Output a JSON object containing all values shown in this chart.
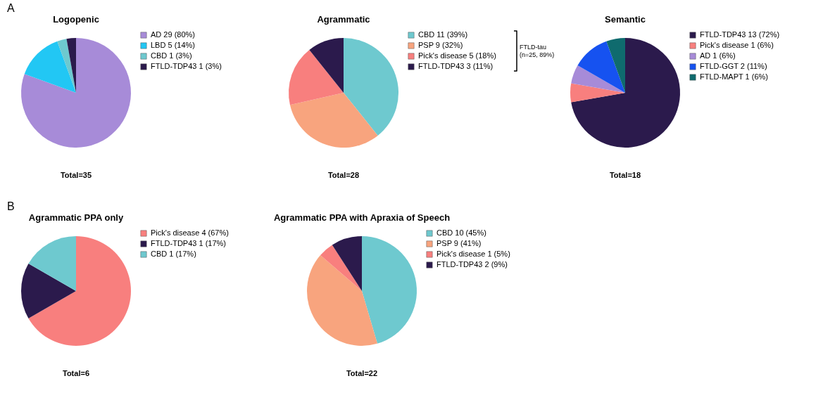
{
  "chart_data": [
    {
      "type": "pie",
      "title": "Logopenic",
      "categories": [
        "AD 29 (80%)",
        "LBD 5 (14%)",
        "CBD 1 (3%)",
        "FTLD-TDP43 1 (3%)"
      ],
      "values": [
        29,
        5,
        1,
        1
      ],
      "colors": [
        "#a78bd8",
        "#22c7f4",
        "#6ec9cf",
        "#2b1a4c"
      ],
      "legend": "right",
      "annotations": [
        "A",
        "Total=35"
      ]
    },
    {
      "type": "pie",
      "title": "Agrammatic",
      "categories": [
        "CBD 11 (39%)",
        "PSP 9 (32%)",
        "Pick's disease 5 (18%)",
        "FTLD-TDP43 3 (11%)"
      ],
      "values": [
        11,
        9,
        5,
        3
      ],
      "colors": [
        "#6ec9cf",
        "#f8a47e",
        "#f87f7e",
        "#2b1a4c"
      ],
      "legend": "right",
      "annotations": [
        "FTLD-tau\n(n=25, 89%)",
        "Total=28"
      ]
    },
    {
      "type": "pie",
      "title": "Semantic",
      "categories": [
        "FTLD-TDP43 13 (72%)",
        "Pick's disease 1 (6%)",
        "AD 1 (6%)",
        "FTLD-GGT 2 (11%)",
        "FTLD-MAPT 1 (6%)"
      ],
      "values": [
        13,
        1,
        1,
        2,
        1
      ],
      "colors": [
        "#2b1a4c",
        "#f87f7e",
        "#a78bd8",
        "#1652f0",
        "#0f6b6e"
      ],
      "legend": "right",
      "annotations": [
        "Total=18"
      ]
    },
    {
      "type": "pie",
      "title": "Agrammatic PPA only",
      "categories": [
        "Pick's disease 4 (67%)",
        "FTLD-TDP43 1 (17%)",
        "CBD 1 (17%)"
      ],
      "values": [
        4,
        1,
        1
      ],
      "colors": [
        "#f87f7e",
        "#2b1a4c",
        "#6ec9cf"
      ],
      "legend": "right",
      "annotations": [
        "B",
        "Total=6"
      ]
    },
    {
      "type": "pie",
      "title": "Agrammatic PPA with Apraxia of Speech",
      "categories": [
        "CBD 10 (45%)",
        "PSP 9 (41%)",
        "Pick's disease 1 (5%)",
        "FTLD-TDP43 2 (9%)"
      ],
      "values": [
        10,
        9,
        1,
        2
      ],
      "colors": [
        "#6ec9cf",
        "#f8a47e",
        "#f87f7e",
        "#2b1a4c"
      ],
      "legend": "right",
      "annotations": [
        "Total=22"
      ]
    }
  ]
}
